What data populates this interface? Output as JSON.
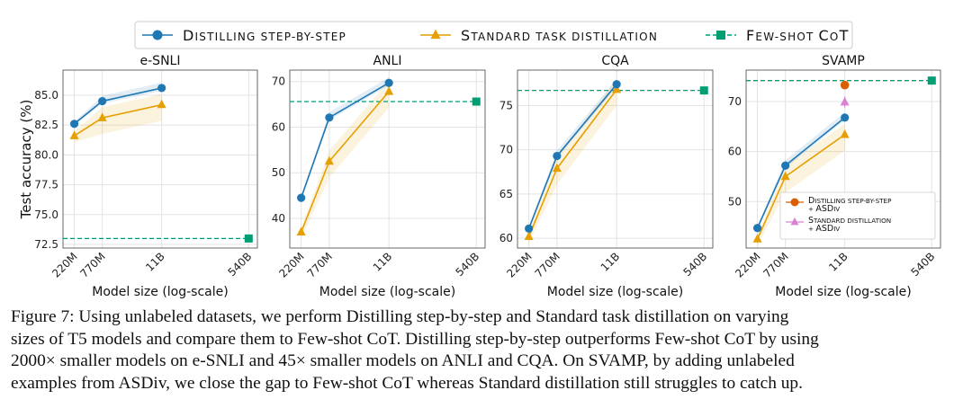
{
  "colors": {
    "distill": "#1f77b4",
    "standard": "#e69f00",
    "fewshot": "#009e73",
    "asdiv_distill": "#d95f02",
    "asdiv_standard": "#d783d3"
  },
  "legend": {
    "items": [
      {
        "label": "Distilling step-by-step",
        "marker": "circle",
        "color": "#1f77b4"
      },
      {
        "label": "Standard task distillation",
        "marker": "triangle",
        "color": "#e69f00"
      },
      {
        "label": "Few-shot CoT",
        "marker": "square",
        "color": "#009e73"
      }
    ]
  },
  "chart_data": [
    {
      "type": "line",
      "title": "e-SNLI",
      "xlabel": "Model size (log-scale)",
      "ylabel": "Test accuracy (%)",
      "x_scale": "log",
      "categories": [
        "220M",
        "770M",
        "11B",
        "540B"
      ],
      "yticks": [
        72.5,
        75.0,
        77.5,
        80.0,
        82.5,
        85.0
      ],
      "ylim": [
        72.2,
        87.1
      ],
      "series": [
        {
          "name": "Distilling step-by-step",
          "x": [
            "220M",
            "770M",
            "11B"
          ],
          "values": [
            82.6,
            84.5,
            85.6
          ]
        },
        {
          "name": "Standard task distillation",
          "x": [
            "220M",
            "770M",
            "11B"
          ],
          "values": [
            81.6,
            83.1,
            84.2
          ]
        },
        {
          "name": "Few-shot CoT",
          "x": [
            "540B"
          ],
          "values": [
            73.0
          ]
        }
      ]
    },
    {
      "type": "line",
      "title": "ANLI",
      "xlabel": "Model size (log-scale)",
      "ylabel": "",
      "x_scale": "log",
      "categories": [
        "220M",
        "770M",
        "11B",
        "540B"
      ],
      "yticks": [
        40,
        50,
        60,
        70
      ],
      "ylim": [
        33.5,
        72.5
      ],
      "series": [
        {
          "name": "Distilling step-by-step",
          "x": [
            "220M",
            "770M",
            "11B"
          ],
          "values": [
            44.5,
            62.1,
            69.7
          ]
        },
        {
          "name": "Standard task distillation",
          "x": [
            "220M",
            "770M",
            "11B"
          ],
          "values": [
            37.0,
            52.5,
            67.8
          ]
        },
        {
          "name": "Few-shot CoT",
          "x": [
            "540B"
          ],
          "values": [
            65.6
          ]
        }
      ]
    },
    {
      "type": "line",
      "title": "CQA",
      "xlabel": "Model size (log-scale)",
      "ylabel": "",
      "x_scale": "log",
      "categories": [
        "220M",
        "770M",
        "11B",
        "540B"
      ],
      "yticks": [
        60,
        65,
        70,
        75
      ],
      "ylim": [
        58.9,
        79.0
      ],
      "series": [
        {
          "name": "Distilling step-by-step",
          "x": [
            "220M",
            "770M",
            "11B"
          ],
          "values": [
            61.1,
            69.3,
            77.4
          ]
        },
        {
          "name": "Standard task distillation",
          "x": [
            "220M",
            "770M",
            "11B"
          ],
          "values": [
            60.2,
            67.9,
            76.8
          ]
        },
        {
          "name": "Few-shot CoT",
          "x": [
            "540B"
          ],
          "values": [
            76.7
          ]
        }
      ]
    },
    {
      "type": "line",
      "title": "SVAMP",
      "xlabel": "Model size (log-scale)",
      "ylabel": "",
      "x_scale": "log",
      "categories": [
        "220M",
        "770M",
        "11B",
        "540B"
      ],
      "yticks": [
        50,
        60,
        70
      ],
      "ylim": [
        40.7,
        76.3
      ],
      "series": [
        {
          "name": "Distilling step-by-step",
          "x": [
            "220M",
            "770M",
            "11B"
          ],
          "values": [
            44.7,
            57.2,
            66.8
          ]
        },
        {
          "name": "Standard task distillation",
          "x": [
            "220M",
            "770M",
            "11B"
          ],
          "values": [
            42.5,
            55.0,
            63.4
          ]
        },
        {
          "name": "Few-shot CoT",
          "x": [
            "540B"
          ],
          "values": [
            74.2
          ]
        },
        {
          "name": "Distilling step-by-step + ASDiv",
          "x": [
            "11B"
          ],
          "values": [
            73.3
          ]
        },
        {
          "name": "Standard distillation + ASDiv",
          "x": [
            "11B"
          ],
          "values": [
            69.9
          ]
        }
      ],
      "inset_legend": [
        {
          "line1": "Distilling step-by-step",
          "line2": "+ ASDiv",
          "marker": "circle",
          "color": "#d95f02"
        },
        {
          "line1": "Standard distillation",
          "line2": "+ ASDiv",
          "marker": "triangle",
          "color": "#d783d3"
        }
      ]
    }
  ],
  "caption": {
    "lines": [
      "Figure 7: Using unlabeled datasets, we perform Distilling step-by-step and Standard task distillation on varying",
      "sizes of T5 models and compare them to Few-shot CoT. Distilling step-by-step outperforms Few-shot CoT by using",
      "2000× smaller models on e-SNLI and 45× smaller models on ANLI and CQA. On SVAMP, by adding unlabeled",
      "examples from ASDiv, we close the gap to Few-shot CoT whereas Standard distillation still struggles to catch up."
    ]
  }
}
